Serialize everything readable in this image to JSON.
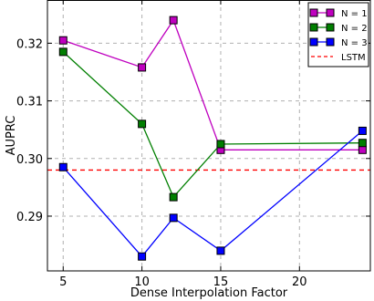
{
  "chart_data": {
    "type": "line",
    "title": "",
    "xlabel": "Dense Interpolation Factor",
    "ylabel": "AUPRC",
    "xlim": [
      4,
      24.5
    ],
    "ylim": [
      0.2805,
      0.3275
    ],
    "x_ticks": [
      5,
      10,
      15,
      20
    ],
    "y_ticks": [
      0.29,
      0.3,
      0.31,
      0.32
    ],
    "y_tick_labels": [
      "0.29",
      "0.30",
      "0.31",
      "0.32"
    ],
    "grid": true,
    "legend_position": "top-right",
    "series": [
      {
        "name": "N = 1",
        "color": "#bf00bf",
        "marker_fill": "#bf00bf",
        "x": [
          5,
          10,
          12,
          15,
          24
        ],
        "y": [
          0.3205,
          0.3158,
          0.324,
          0.3015,
          0.3015
        ]
      },
      {
        "name": "N = 2",
        "color": "#007f00",
        "marker_fill": "#007f00",
        "x": [
          5,
          10,
          12,
          15,
          24
        ],
        "y": [
          0.3185,
          0.306,
          0.2933,
          0.3025,
          0.3027
        ]
      },
      {
        "name": "N = 3",
        "color": "#0000ff",
        "marker_fill": "#0000ff",
        "x": [
          5,
          10,
          12,
          15,
          24
        ],
        "y": [
          0.2985,
          0.283,
          0.2897,
          0.284,
          0.3048
        ]
      }
    ],
    "reference_lines": [
      {
        "name": "LSTM",
        "y": 0.298,
        "color": "#ff0000",
        "style": "dashed"
      }
    ]
  }
}
